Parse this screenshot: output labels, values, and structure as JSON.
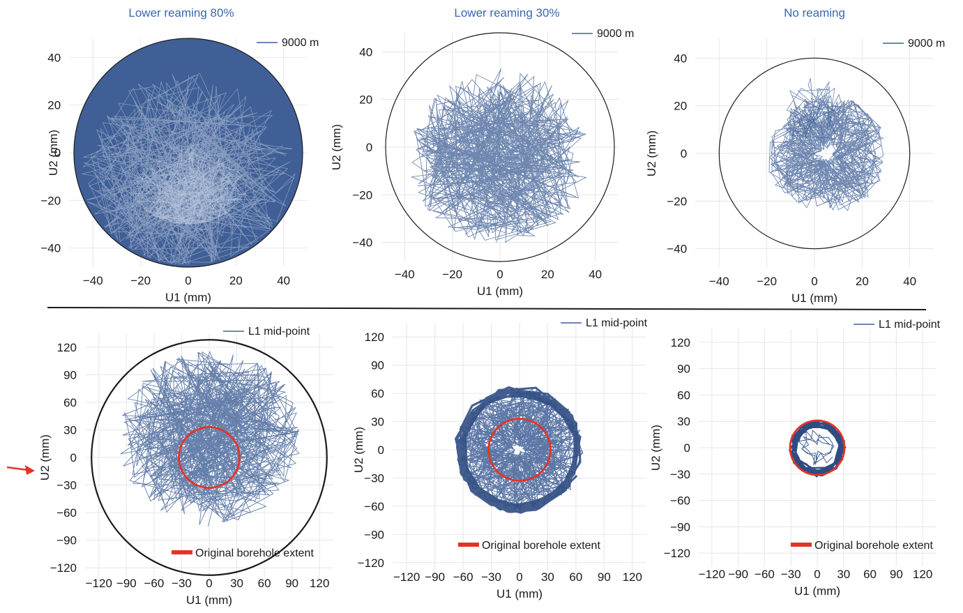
{
  "figure": {
    "divider_color": "#1a1a1a",
    "indicator": "red-arrow-icon"
  },
  "colors": {
    "trajectory": "#3f5f96",
    "trajectory_dark": "#2f4c82",
    "boundary": "#1a1a1a",
    "original": "#e53325",
    "title": "#3a66b0",
    "grid": "#e6e6e6"
  },
  "chart_data": [
    {
      "type": "scatter",
      "title": "Lower reaming 80%",
      "xlabel": "U1 (mm)",
      "ylabel": "U2 (mm)",
      "xlim": [
        -50,
        50
      ],
      "ylim": [
        -48,
        48
      ],
      "xticks": [
        -40,
        -20,
        0,
        20,
        40
      ],
      "yticks": [
        -40,
        -20,
        0,
        20,
        40
      ],
      "grid": true,
      "legend": {
        "label": "9000 m",
        "position": "top-right"
      },
      "boundary_radius": 48,
      "trajectory": {
        "center": [
          0,
          -20
        ],
        "spread": 46,
        "density": "very dense, filling bore, dense cluster at bottom",
        "style": "wall-contact"
      }
    },
    {
      "type": "scatter",
      "title": "Lower reaming 30%",
      "xlabel": "U1 (mm)",
      "ylabel": "U2 (mm)",
      "xlim": [
        -50,
        50
      ],
      "ylim": [
        -48,
        48
      ],
      "xticks": [
        -40,
        -20,
        0,
        20,
        40
      ],
      "yticks": [
        -40,
        -20,
        0,
        20,
        40
      ],
      "grid": true,
      "legend": {
        "label": "9000 m",
        "position": "top-right"
      },
      "boundary_radius": 48,
      "trajectory": {
        "center": [
          0,
          -5
        ],
        "spread": 40,
        "density": "dense, centered, few excursions near top"
      }
    },
    {
      "type": "scatter",
      "title": "No reaming",
      "xlabel": "U1 (mm)",
      "ylabel": "U2 (mm)",
      "xlim": [
        -50,
        50
      ],
      "ylim": [
        -48,
        48
      ],
      "xticks": [
        -40,
        -20,
        0,
        20,
        40
      ],
      "yticks": [
        -40,
        -20,
        0,
        20,
        40
      ],
      "grid": true,
      "legend": {
        "label": "9000 m",
        "position": "top-right"
      },
      "boundary_radius": 40,
      "trajectory": {
        "center": [
          5,
          0
        ],
        "spread": 25,
        "density": "compact whirl around center"
      }
    },
    {
      "type": "scatter",
      "title": "",
      "xlabel": "U1 (mm)",
      "ylabel": "U2 (mm)",
      "xlim": [
        -135,
        135
      ],
      "ylim": [
        -135,
        135
      ],
      "xticks": [
        -120,
        -90,
        -60,
        -30,
        0,
        30,
        60,
        90,
        120
      ],
      "yticks": [
        -120,
        -90,
        -60,
        -30,
        0,
        30,
        60,
        90,
        120
      ],
      "grid": true,
      "legend": {
        "label": "L1 mid-point",
        "position": "top-right"
      },
      "legend2": {
        "label": "Original borehole extent",
        "position": "bottom-right"
      },
      "boundary_radius": 128,
      "original_radius": 33,
      "trajectory": {
        "center": [
          0,
          25
        ],
        "spread": 100,
        "density": "wide scatter above center"
      }
    },
    {
      "type": "scatter",
      "title": "",
      "xlabel": "U1 (mm)",
      "ylabel": "U2 (mm)",
      "xlim": [
        -135,
        135
      ],
      "ylim": [
        -135,
        135
      ],
      "xticks": [
        -120,
        -90,
        -60,
        -30,
        0,
        30,
        60,
        90,
        120
      ],
      "yticks": [
        -120,
        -90,
        -60,
        -30,
        0,
        30,
        60,
        90,
        120
      ],
      "grid": true,
      "legend": {
        "label": "L1 mid-point",
        "position": "top-right"
      },
      "legend2": {
        "label": "Original borehole extent",
        "position": "bottom-left"
      },
      "original_radius": 33,
      "trajectory": {
        "center": [
          0,
          0
        ],
        "spread": 67,
        "density": "dense whirl ring of radius ~65"
      }
    },
    {
      "type": "scatter",
      "title": "",
      "xlabel": "U1 (mm)",
      "ylabel": "U2 (mm)",
      "xlim": [
        -135,
        135
      ],
      "ylim": [
        -135,
        135
      ],
      "xticks": [
        -120,
        -90,
        -60,
        -30,
        0,
        30,
        60,
        90,
        120
      ],
      "yticks": [
        -120,
        -90,
        -60,
        -30,
        0,
        30,
        60,
        90,
        120
      ],
      "grid": true,
      "legend": {
        "label": "L1 mid-point",
        "position": "top-right"
      },
      "legend2": {
        "label": "Original borehole extent",
        "position": "bottom-left"
      },
      "original_radius": 31,
      "trajectory": {
        "center": [
          0,
          0
        ],
        "spread": 30,
        "density": "tight ring along original borehole wall"
      }
    }
  ]
}
